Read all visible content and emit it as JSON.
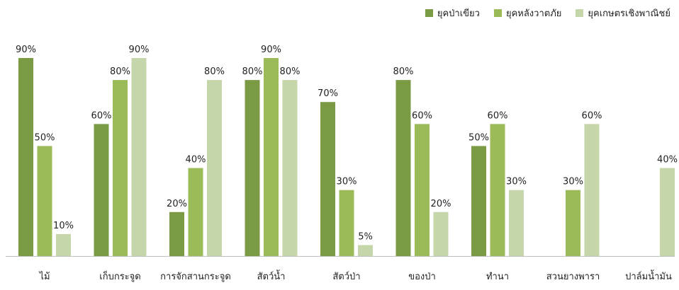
{
  "chart_data": {
    "type": "bar",
    "ylim": [
      0,
      100
    ],
    "grid": false,
    "legend_position": "top-right",
    "categories": [
      "ไม้",
      "เก็บกระจูด",
      "การจักสานกระจูด",
      "สัตว์น้ำ",
      "สัตว์ป่า",
      "ของป่า",
      "ทำนา",
      "สวนยางพารา",
      "ปาล์มน้ำมัน"
    ],
    "series": [
      {
        "name": "ยุคป่าเขียว",
        "color": "#7b9a44",
        "values": [
          90,
          60,
          20,
          80,
          70,
          80,
          50,
          null,
          null
        ],
        "labels": [
          "90%",
          "60%",
          "20%",
          "80%",
          "70%",
          "80%",
          "50%",
          "",
          ""
        ]
      },
      {
        "name": "ยุคหลังวาตภัย",
        "color": "#9bbb59",
        "values": [
          50,
          80,
          40,
          90,
          30,
          60,
          60,
          30,
          null
        ],
        "labels": [
          "50%",
          "80%",
          "40%",
          "90%",
          "30%",
          "60%",
          "60%",
          "30%",
          ""
        ]
      },
      {
        "name": "ยุคเกษตรเชิงพาณิชย์",
        "color": "#c5d6aa",
        "values": [
          10,
          90,
          80,
          80,
          5,
          20,
          30,
          60,
          40
        ],
        "labels": [
          "10%",
          "90%",
          "80%",
          "80%",
          "5%",
          "20%",
          "30%",
          "60%",
          "40%"
        ]
      }
    ]
  }
}
